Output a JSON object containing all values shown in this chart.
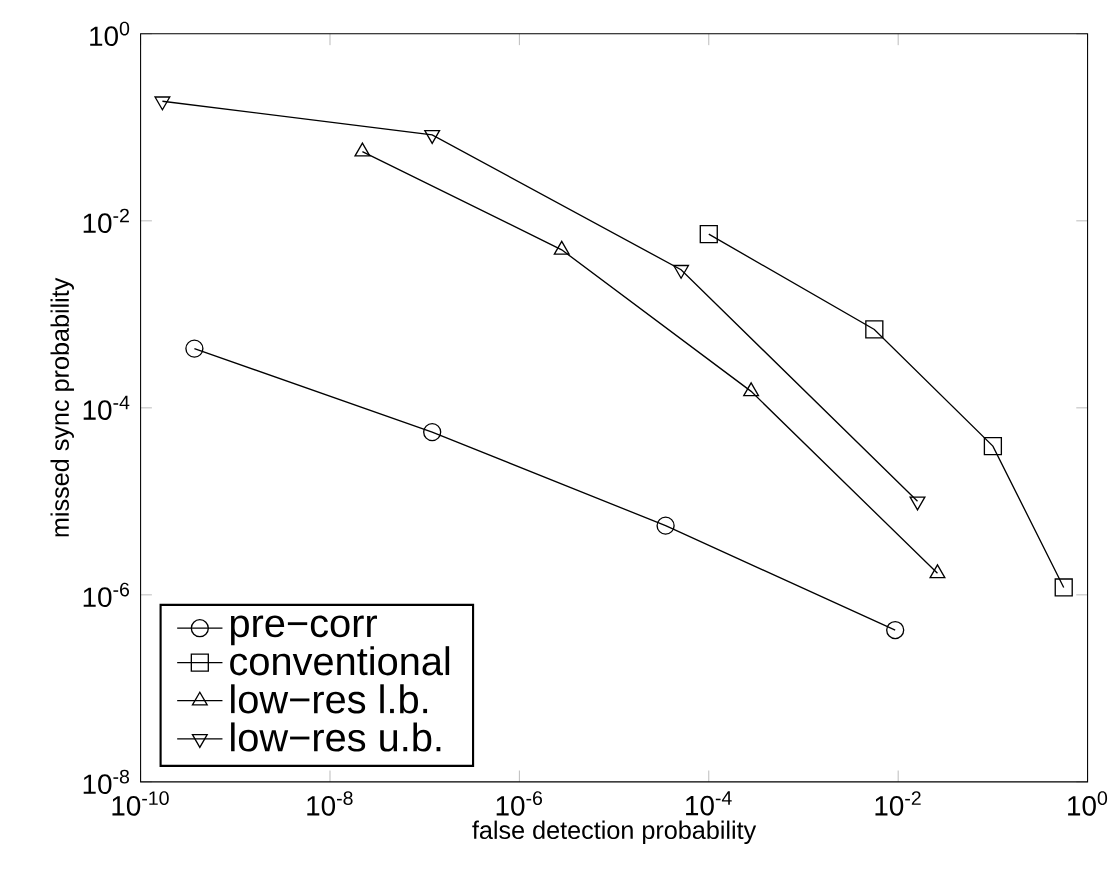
{
  "chart_data": {
    "type": "line",
    "xlabel": "false detection probability",
    "ylabel": "missed sync probability",
    "log": "xy",
    "grid": false,
    "legend": "bottom left",
    "line_style": "solid",
    "xlim": [
      1e-10,
      1
    ],
    "ylim": [
      1e-08,
      1
    ],
    "xticks": [
      {
        "value": 1e-10,
        "label": "10$^{-10}$"
      },
      {
        "value": 1e-08,
        "label": "10$^{-8}$"
      },
      {
        "value": 1e-06,
        "label": "10$^{-6}$"
      },
      {
        "value": 0.0001,
        "label": "10$^{-4}$"
      },
      {
        "value": 0.01,
        "label": "10$^{-2}$"
      },
      {
        "value": 1,
        "label": "10$^{0}$"
      }
    ],
    "yticks": [
      {
        "value": 1e-08,
        "label": "10$^{-8}$"
      },
      {
        "value": 1e-06,
        "label": "10$^{-6}$"
      },
      {
        "value": 0.0001,
        "label": "10$^{-4}$"
      },
      {
        "value": 0.01,
        "label": "10$^{-2}$"
      },
      {
        "value": 1,
        "label": "10$^{0}$"
      }
    ],
    "series": [
      {
        "name": "pre−corr",
        "color": "#000000",
        "marker": "circle",
        "x": [
          3.7e-10,
          1.2e-07,
          3.5e-05,
          0.0093
        ],
        "values": [
          0.00043,
          5.5e-05,
          5.5e-06,
          4.2e-07
        ]
      },
      {
        "name": "conventional",
        "color": "#000000",
        "marker": "square",
        "x": [
          0.0001,
          0.0056,
          0.1,
          0.56
        ],
        "values": [
          0.0072,
          0.00069,
          3.9e-05,
          1.2e-06
        ]
      },
      {
        "name": "low−res l.b.",
        "color": "#000000",
        "marker": "triangle",
        "x": [
          2.2e-08,
          2.8e-06,
          0.00028,
          0.026
        ],
        "values": [
          0.055,
          0.0049,
          0.00015,
          1.7e-06
        ]
      },
      {
        "name": "low−res u.b.",
        "color": "#000000",
        "marker": "triangle-down",
        "x": [
          1.7e-10,
          1.2e-07,
          5.1e-05,
          0.016
        ],
        "values": [
          0.19,
          0.083,
          0.003,
          1e-05
        ]
      }
    ]
  }
}
